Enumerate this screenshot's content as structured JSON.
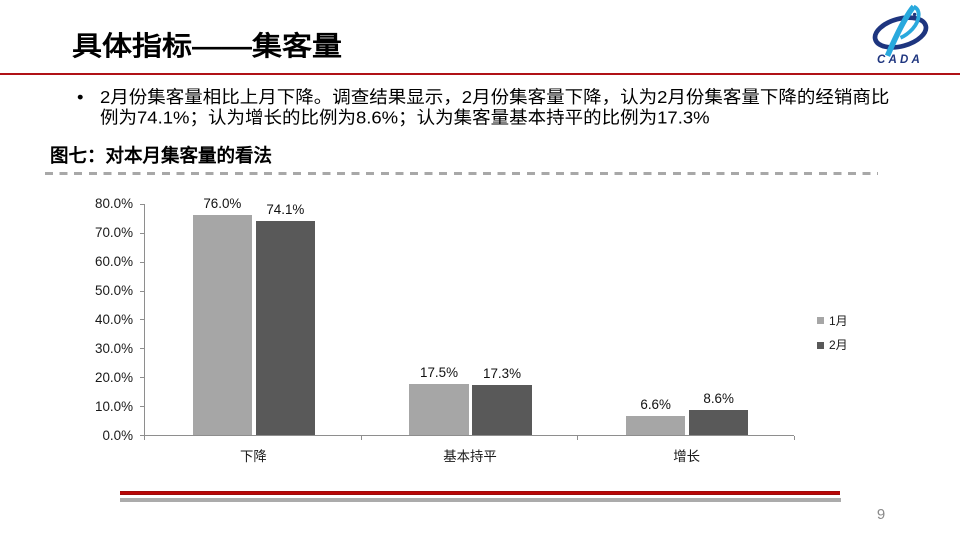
{
  "slide": {
    "title": "具体指标——集客量",
    "bullet_char": "•",
    "bullet_text": "2月份集客量相比上月下降。调查结果显示，2月份集客量下降，认为2月份集客量下降的经销商比例为74.1%；认为增长的比例为8.6%；认为集客量基本持平的比例为17.3%",
    "figure_caption": "图七：对本月集客量的看法",
    "page_number": "9",
    "logo_text": "CADA"
  },
  "colors": {
    "accent_red": "#b01116",
    "footer_red": "#c00000",
    "footer_gray": "#ababab",
    "series1": "#a6a6a6",
    "series2": "#595959",
    "axis_gray": "#8e8e8e",
    "logo_navy": "#1e357f",
    "logo_cyan": "#29a9dd"
  },
  "chart_data": {
    "type": "bar",
    "categories": [
      "下降",
      "基本持平",
      "增长"
    ],
    "series": [
      {
        "name": "1月",
        "color": "#a6a6a6",
        "values": [
          76.0,
          17.5,
          6.6
        ]
      },
      {
        "name": "2月",
        "color": "#595959",
        "values": [
          74.1,
          17.3,
          8.6
        ]
      }
    ],
    "title": "",
    "xlabel": "",
    "ylabel": "",
    "ylim": [
      0,
      80
    ],
    "ytick_step": 10,
    "value_label_format": "0.0%",
    "grid": false,
    "legend_position": "right"
  }
}
